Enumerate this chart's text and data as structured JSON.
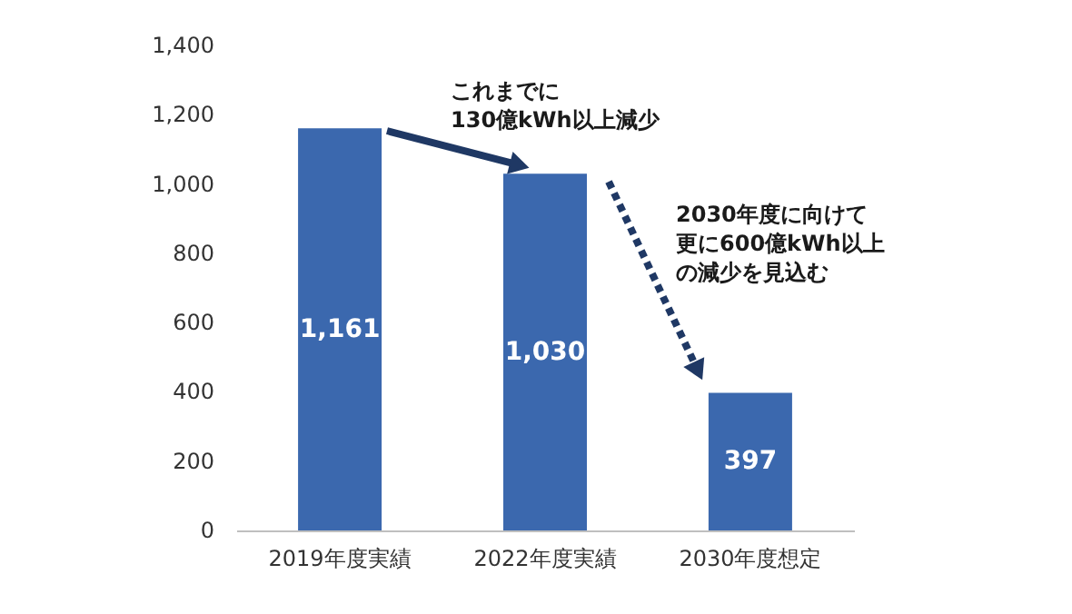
{
  "chart_data": {
    "type": "bar",
    "categories": [
      "2019年度実績",
      "2022年度実績",
      "2030年度想定"
    ],
    "values": [
      1161,
      1030,
      397
    ],
    "color": "#3b68ae",
    "ylim": [
      0,
      1400
    ],
    "yticks": [
      0,
      200,
      400,
      600,
      800,
      {
        "value": 1000,
        "label": "1,000"
      },
      {
        "value": 1200,
        "label": "1,200"
      },
      {
        "value": 1400,
        "label": "1,400"
      }
    ],
    "grid": false,
    "value_labels": [
      "1,161",
      "1,030",
      "397"
    ],
    "annotations": [
      "これまでに130億kWh以上減少",
      "2030年度に向けて更に600億kWh以上の減少を見込む"
    ]
  }
}
